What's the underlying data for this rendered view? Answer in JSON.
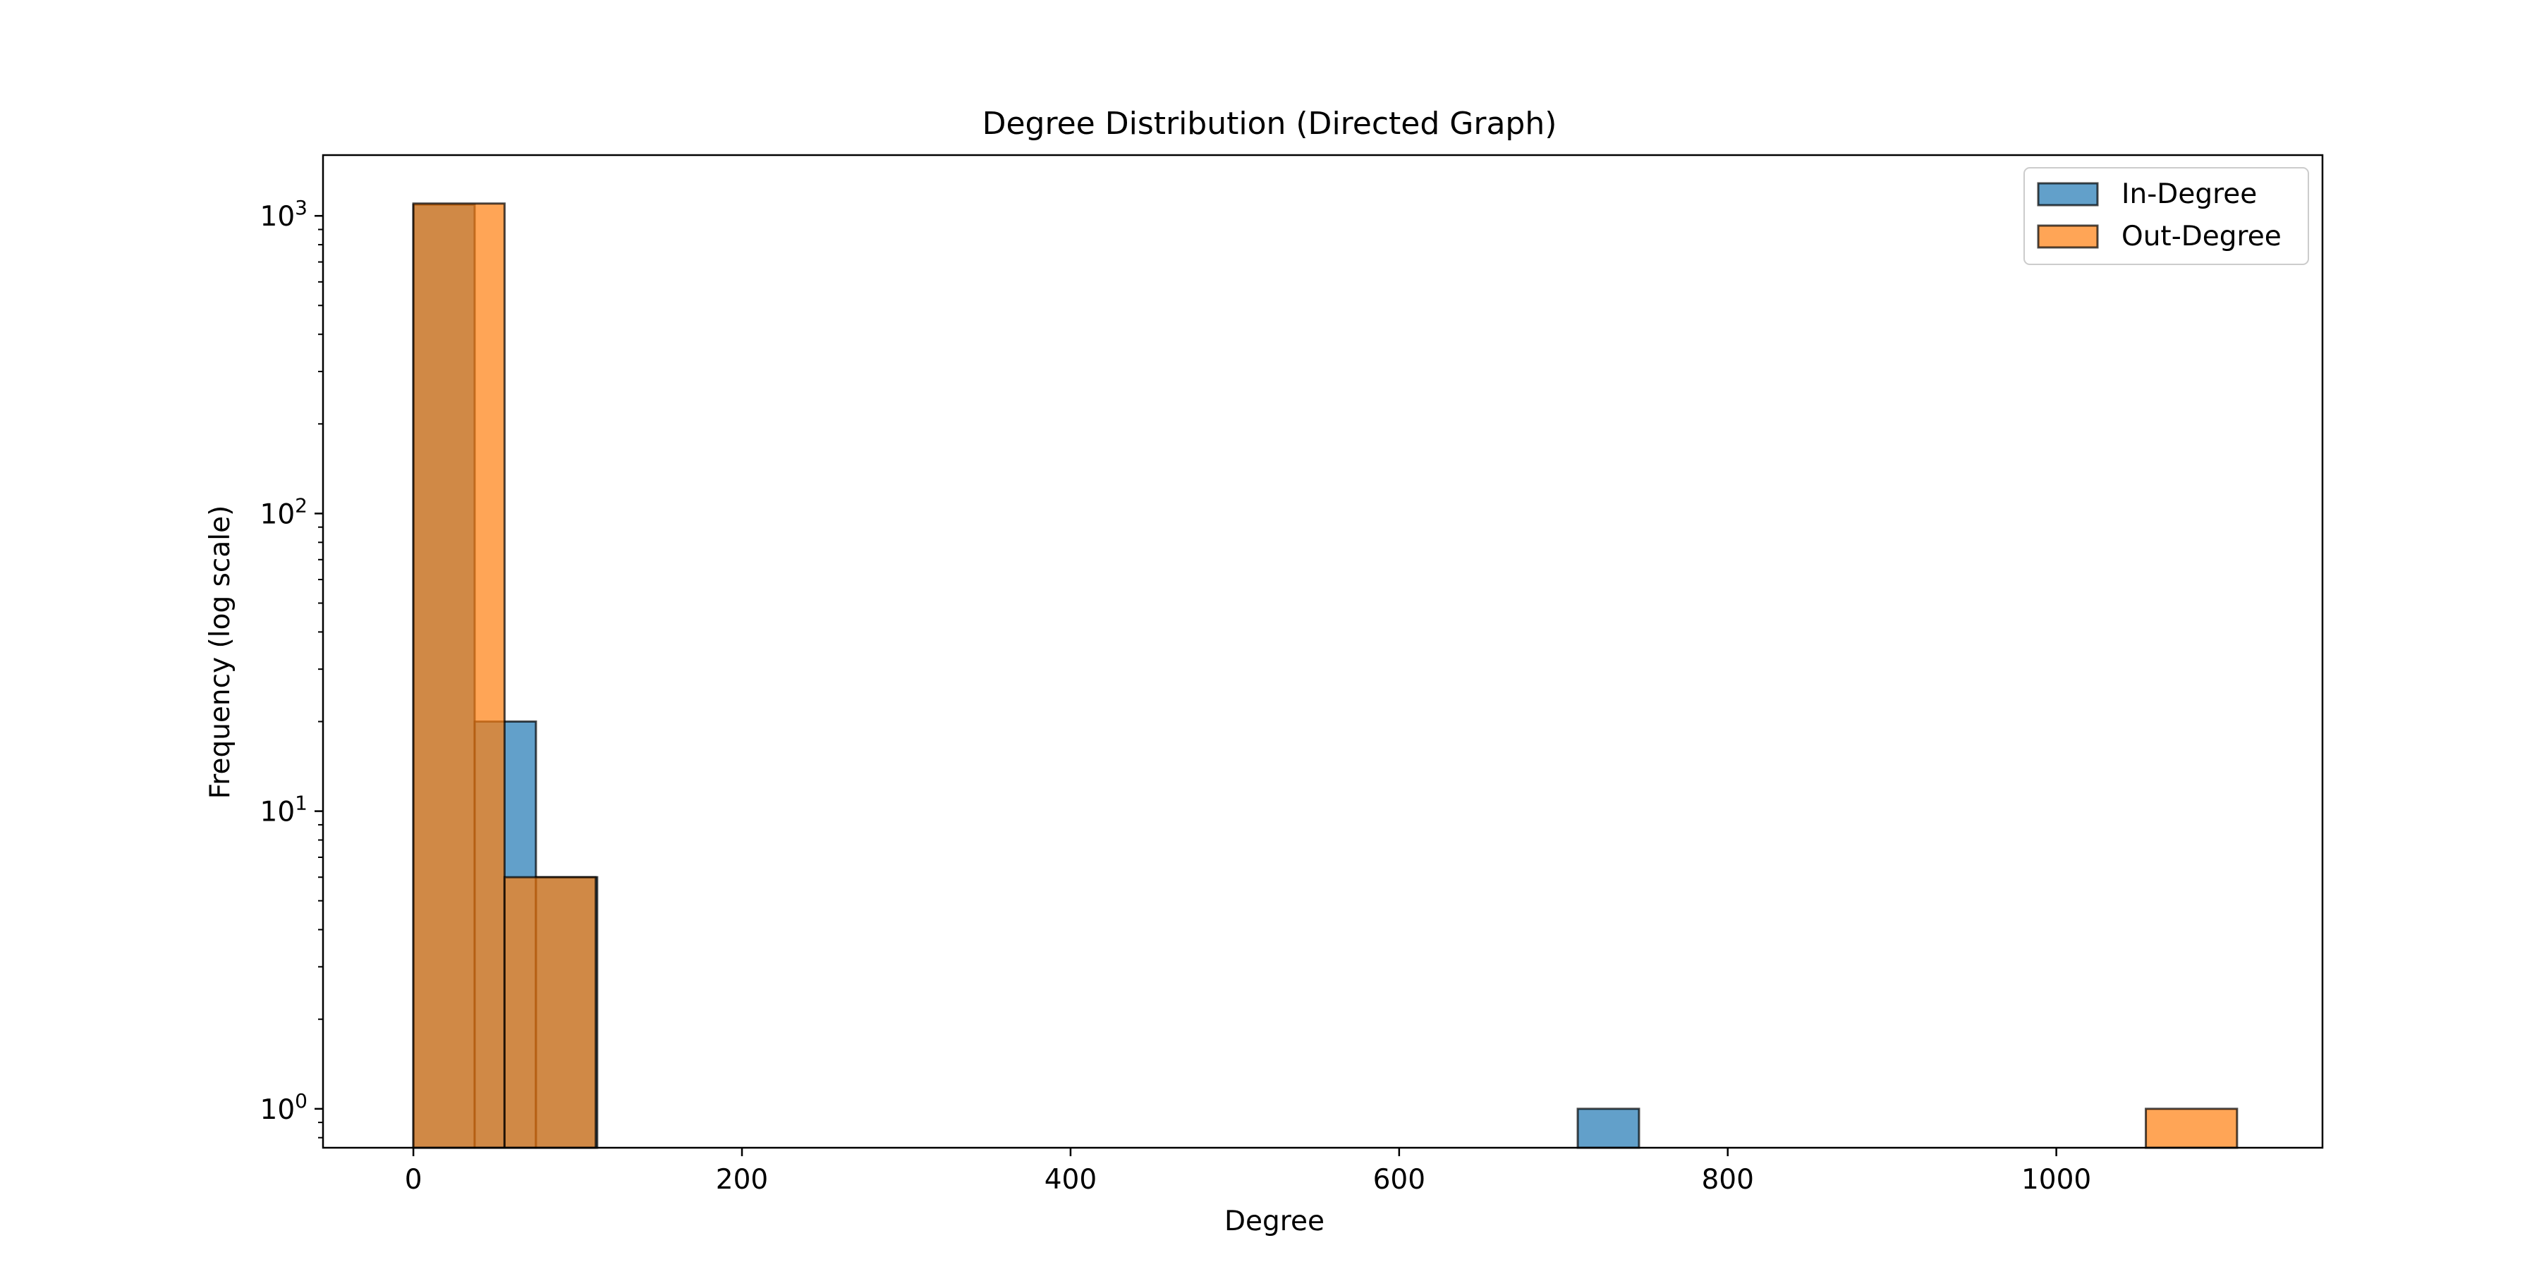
{
  "chart_data": {
    "type": "bar",
    "title": "Degree Distribution (Directed Graph)",
    "xlabel": "Degree",
    "ylabel": "Frequency (log scale)",
    "yscale": "log",
    "xlim": [
      -55,
      1162
    ],
    "ylim": [
      0.74,
      1600.0
    ],
    "xticks": [
      0,
      200,
      400,
      600,
      800,
      1000
    ],
    "xtick_labels": [
      "0",
      "200",
      "400",
      "600",
      "800",
      "1000"
    ],
    "yticks": [
      1,
      10,
      100,
      1000
    ],
    "ytick_labels": [
      {
        "base": "10",
        "exp": "0"
      },
      {
        "base": "10",
        "exp": "1"
      },
      {
        "base": "10",
        "exp": "2"
      },
      {
        "base": "10",
        "exp": "3"
      }
    ],
    "grid": false,
    "legend_position": "top-right",
    "series": [
      {
        "name": "In-Degree",
        "color": "#1f77b4",
        "bins": [
          {
            "x0": 0,
            "x1": 37.3,
            "count": 1090
          },
          {
            "x0": 37.3,
            "x1": 74.6,
            "count": 20
          },
          {
            "x0": 74.6,
            "x1": 111.9,
            "count": 6
          },
          {
            "x0": 708.7,
            "x1": 746,
            "count": 1
          }
        ]
      },
      {
        "name": "Out-Degree",
        "color": "#ff7f0e",
        "bins": [
          {
            "x0": 0,
            "x1": 55.5,
            "count": 1100
          },
          {
            "x0": 55.5,
            "x1": 111,
            "count": 6
          },
          {
            "x0": 1054.5,
            "x1": 1110,
            "count": 1
          }
        ]
      }
    ]
  }
}
